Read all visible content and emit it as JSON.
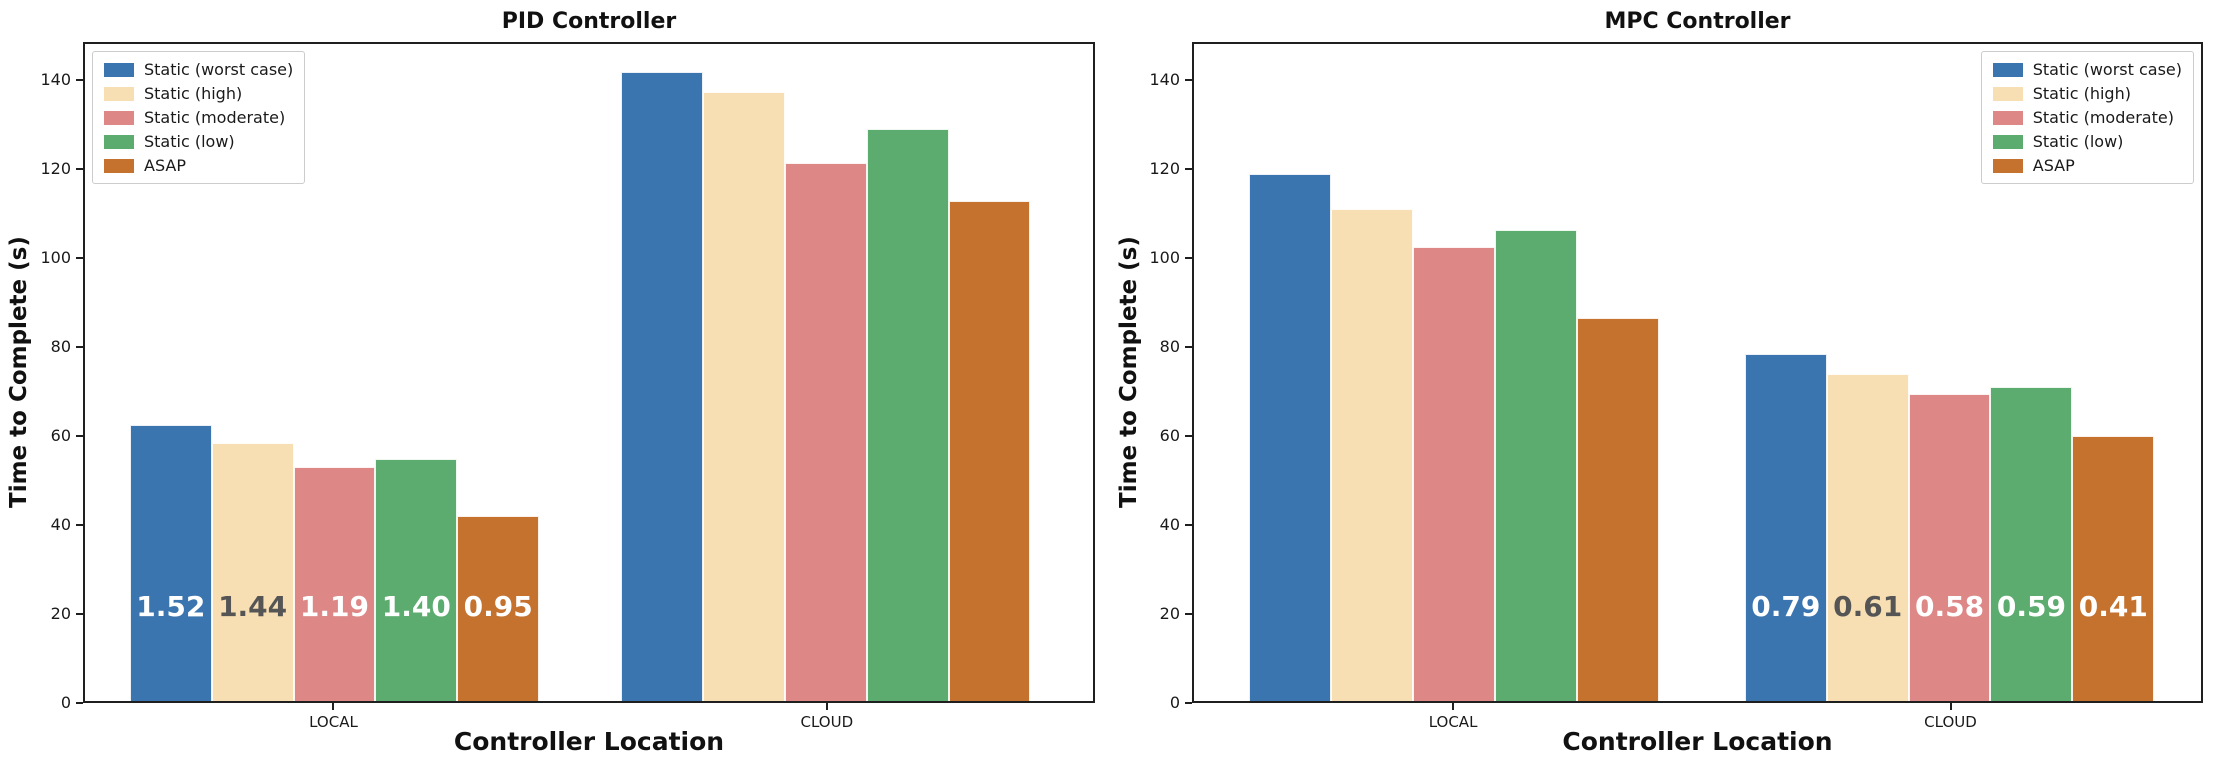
{
  "figure": {
    "background": "#ffffff",
    "axis_color": "#1f1f1f",
    "value_label_colors": [
      "#ffffff",
      "#555555",
      "#ffffff",
      "#ffffff",
      "#ffffff"
    ]
  },
  "chart_data": [
    {
      "type": "bar",
      "title": "PID Controller",
      "xlabel": "Controller Location",
      "ylabel": "Time to Complete (s)",
      "categories": [
        "LOCAL",
        "CLOUD"
      ],
      "ylim": [
        0,
        148.6
      ],
      "yticks": [
        0,
        20,
        40,
        60,
        80,
        100,
        120,
        140
      ],
      "grid": false,
      "legend_position": "upper-left",
      "series": [
        {
          "name": "Static (worst case)",
          "color": "#3B75AF",
          "values": [
            62,
            141.5
          ]
        },
        {
          "name": "Static (high)",
          "color": "#F7DFB3",
          "values": [
            58,
            137
          ]
        },
        {
          "name": "Static (moderate)",
          "color": "#DD8786",
          "values": [
            52.5,
            121
          ]
        },
        {
          "name": "Static (low)",
          "color": "#5CAC6F",
          "values": [
            54.5,
            128.5
          ]
        },
        {
          "name": "ASAP",
          "color": "#C5722F",
          "values": [
            41.5,
            112.5
          ]
        }
      ],
      "bar_labels": [
        {
          "category": "LOCAL",
          "values": [
            "1.52",
            "1.44",
            "1.19",
            "1.40",
            "0.95"
          ]
        }
      ]
    },
    {
      "type": "bar",
      "title": "MPC Controller",
      "xlabel": "Controller Location",
      "ylabel": "Time to Complete (s)",
      "categories": [
        "LOCAL",
        "CLOUD"
      ],
      "ylim": [
        0,
        148.6
      ],
      "yticks": [
        0,
        20,
        40,
        60,
        80,
        100,
        120,
        140
      ],
      "grid": false,
      "legend_position": "upper-right",
      "series": [
        {
          "name": "Static (worst case)",
          "color": "#3B75AF",
          "values": [
            118.5,
            78
          ]
        },
        {
          "name": "Static (high)",
          "color": "#F7DFB3",
          "values": [
            110.5,
            73.5
          ]
        },
        {
          "name": "Static (moderate)",
          "color": "#DD8786",
          "values": [
            102,
            69
          ]
        },
        {
          "name": "Static (low)",
          "color": "#5CAC6F",
          "values": [
            106,
            70.5
          ]
        },
        {
          "name": "ASAP",
          "color": "#C5722F",
          "values": [
            86,
            59.5
          ]
        }
      ],
      "bar_labels": [
        {
          "category": "CLOUD",
          "values": [
            "0.79",
            "0.61",
            "0.58",
            "0.59",
            "0.41"
          ]
        }
      ]
    }
  ]
}
